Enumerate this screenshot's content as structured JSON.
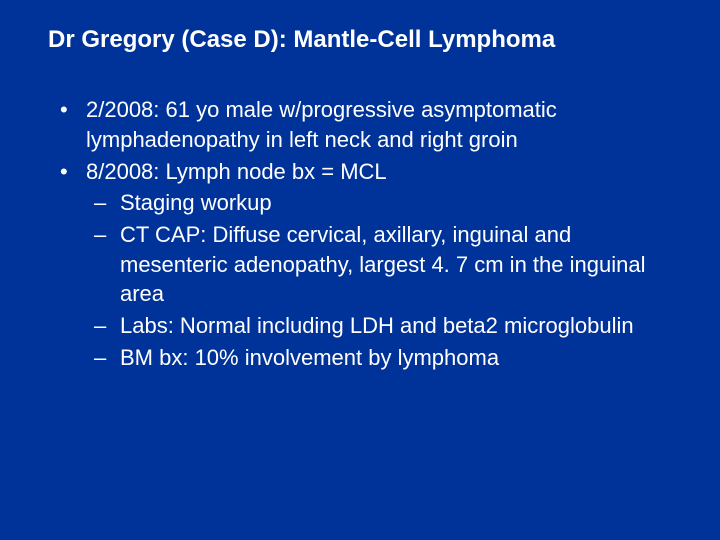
{
  "slide": {
    "title": "Dr Gregory (Case D): Mantle-Cell Lymphoma",
    "background_color": "#003399",
    "text_color": "#ffffff",
    "title_fontsize": 24,
    "body_fontsize": 22,
    "font_family": "Arial",
    "bullets": [
      {
        "text": "2/2008: 61 yo male w/progressive asymptomatic lymphadenopathy in left neck and right groin",
        "sub": []
      },
      {
        "text": "8/2008: Lymph node bx = MCL",
        "sub": [
          "Staging workup",
          "CT CAP: Diffuse cervical, axillary, inguinal and mesenteric adenopathy, largest 4. 7 cm in the inguinal area",
          "Labs: Normal including LDH and beta2 microglobulin",
          "BM bx: 10% involvement by lymphoma"
        ]
      }
    ]
  }
}
